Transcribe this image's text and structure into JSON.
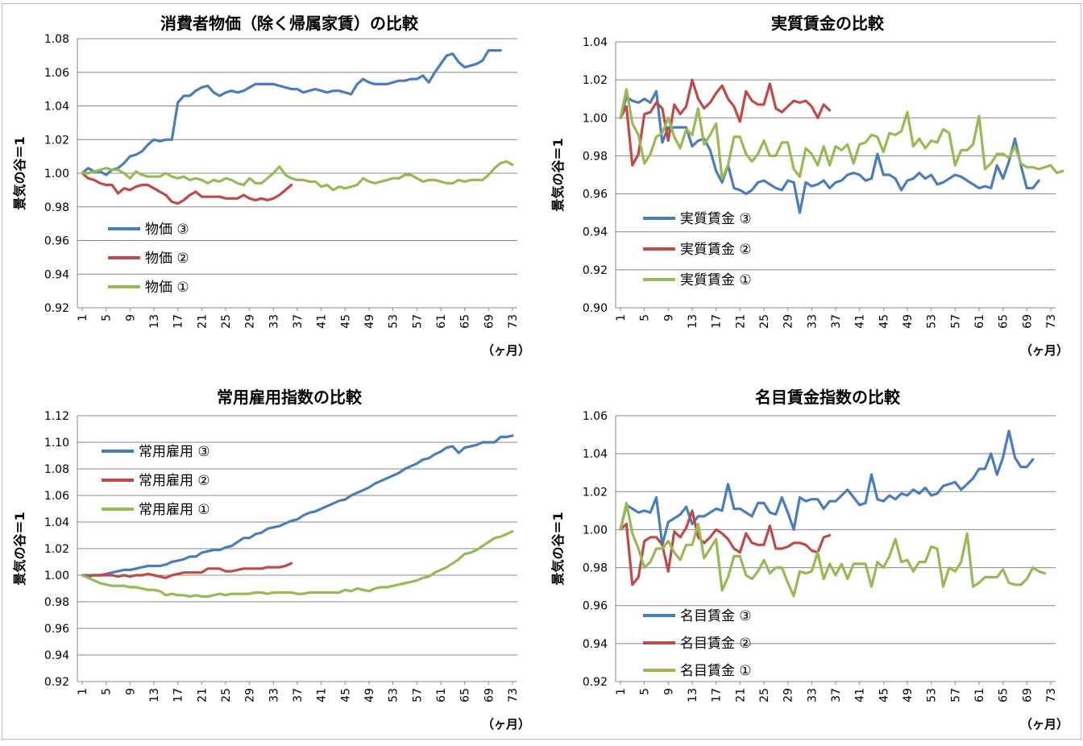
{
  "colors": {
    "series3": "#4a7ebb",
    "series2": "#be4b48",
    "series1": "#98b954",
    "grid": "#888888",
    "axis": "#888888"
  },
  "chart_data": [
    {
      "type": "line",
      "title": "消費者物価（除く帰属家賃）の比較",
      "ylabel": "景気の谷＝1",
      "xlabel": "（ヶ月）",
      "ylim": [
        0.92,
        1.08
      ],
      "yticks": [
        "0.92",
        "0.94",
        "0.96",
        "0.98",
        "1.00",
        "1.02",
        "1.04",
        "1.06",
        "1.08"
      ],
      "xticks": [
        "1",
        "5",
        "9",
        "13",
        "17",
        "21",
        "25",
        "29",
        "33",
        "37",
        "41",
        "45",
        "49",
        "53",
        "57",
        "61",
        "65",
        "69",
        "73"
      ],
      "xlim": [
        1,
        73
      ],
      "legend_position": "left-lower",
      "grid": true,
      "series": [
        {
          "name": "物価 ③",
          "color": "#4a7ebb",
          "x_start": 1,
          "values": [
            1.0,
            1.003,
            1.001,
            1.001,
            0.999,
            1.002,
            1.003,
            1.006,
            1.01,
            1.011,
            1.013,
            1.017,
            1.02,
            1.019,
            1.02,
            1.02,
            1.042,
            1.046,
            1.046,
            1.049,
            1.051,
            1.052,
            1.048,
            1.046,
            1.048,
            1.049,
            1.048,
            1.049,
            1.051,
            1.053,
            1.053,
            1.053,
            1.053,
            1.052,
            1.051,
            1.05,
            1.05,
            1.048,
            1.049,
            1.05,
            1.049,
            1.048,
            1.049,
            1.049,
            1.048,
            1.047,
            1.053,
            1.056,
            1.054,
            1.053,
            1.053,
            1.053,
            1.054,
            1.055,
            1.055,
            1.056,
            1.056,
            1.058,
            1.054,
            1.06,
            1.065,
            1.07,
            1.071,
            1.066,
            1.063,
            1.064,
            1.065,
            1.067,
            1.073,
            1.073,
            1.073
          ]
        },
        {
          "name": "物価 ②",
          "color": "#be4b48",
          "x_start": 1,
          "values": [
            1.0,
            0.997,
            0.996,
            0.994,
            0.993,
            0.993,
            0.988,
            0.991,
            0.99,
            0.992,
            0.993,
            0.993,
            0.991,
            0.989,
            0.987,
            0.983,
            0.982,
            0.984,
            0.987,
            0.989,
            0.986,
            0.986,
            0.986,
            0.986,
            0.985,
            0.985,
            0.985,
            0.987,
            0.985,
            0.984,
            0.985,
            0.984,
            0.985,
            0.987,
            0.99,
            0.993
          ]
        },
        {
          "name": "物価 ①",
          "color": "#98b954",
          "x_start": 1,
          "values": [
            1.0,
            1.0,
            1.001,
            1.002,
            1.003,
            1.002,
            1.002,
            1.0,
            0.997,
            1.001,
            0.999,
            0.998,
            0.998,
            0.998,
            1.0,
            0.998,
            0.997,
            0.998,
            0.996,
            0.997,
            0.996,
            0.994,
            0.996,
            0.995,
            0.997,
            0.996,
            0.994,
            0.993,
            0.997,
            0.994,
            0.994,
            0.997,
            1.0,
            1.004,
            0.999,
            0.997,
            0.996,
            0.996,
            0.995,
            0.995,
            0.992,
            0.993,
            0.99,
            0.992,
            0.991,
            0.992,
            0.993,
            0.997,
            0.995,
            0.994,
            0.995,
            0.996,
            0.997,
            0.997,
            0.999,
            0.999,
            0.997,
            0.995,
            0.996,
            0.996,
            0.995,
            0.994,
            0.994,
            0.996,
            0.995,
            0.996,
            0.996,
            0.996,
            0.999,
            1.003,
            1.006,
            1.007,
            1.005
          ]
        }
      ]
    },
    {
      "type": "line",
      "title": "実質賃金の比較",
      "ylabel": "景気の谷＝1",
      "xlabel": "（ヶ月）",
      "ylim": [
        0.9,
        1.04
      ],
      "yticks": [
        "0.90",
        "0.92",
        "0.94",
        "0.96",
        "0.98",
        "1.00",
        "1.02",
        "1.04"
      ],
      "xticks": [
        "1",
        "5",
        "9",
        "13",
        "17",
        "21",
        "25",
        "29",
        "33",
        "37",
        "41",
        "45",
        "49",
        "53",
        "57",
        "61",
        "65",
        "69",
        "73"
      ],
      "xlim": [
        1,
        73
      ],
      "legend_position": "left-lower",
      "grid": true,
      "series": [
        {
          "name": "実質賃金 ③",
          "color": "#4a7ebb",
          "x_start": 1,
          "values": [
            1.0,
            1.011,
            1.009,
            1.008,
            1.01,
            1.008,
            1.014,
            0.987,
            0.995,
            0.995,
            0.995,
            0.995,
            0.985,
            0.988,
            0.989,
            0.983,
            0.972,
            0.966,
            0.975,
            0.963,
            0.962,
            0.96,
            0.962,
            0.966,
            0.967,
            0.965,
            0.963,
            0.962,
            0.967,
            0.966,
            0.95,
            0.966,
            0.964,
            0.965,
            0.967,
            0.963,
            0.966,
            0.967,
            0.97,
            0.971,
            0.97,
            0.967,
            0.968,
            0.981,
            0.97,
            0.97,
            0.968,
            0.962,
            0.967,
            0.968,
            0.971,
            0.968,
            0.97,
            0.965,
            0.966,
            0.968,
            0.97,
            0.969,
            0.967,
            0.965,
            0.963,
            0.964,
            0.963,
            0.975,
            0.968,
            0.977,
            0.989,
            0.975,
            0.963,
            0.963,
            0.967
          ]
        },
        {
          "name": "実質賃金 ②",
          "color": "#be4b48",
          "x_start": 1,
          "values": [
            1.0,
            1.006,
            0.975,
            0.981,
            1.002,
            1.003,
            1.008,
            1.005,
            0.988,
            1.007,
            1.002,
            1.006,
            1.02,
            1.01,
            1.005,
            1.008,
            1.013,
            1.017,
            1.01,
            1.006,
            0.998,
            1.014,
            1.009,
            1.007,
            1.007,
            1.018,
            1.005,
            1.003,
            1.006,
            1.009,
            1.008,
            1.009,
            1.006,
            1.0,
            1.007,
            1.004
          ]
        },
        {
          "name": "実質賃金 ①",
          "color": "#98b954",
          "x_start": 1,
          "values": [
            1.0,
            1.015,
            0.997,
            0.991,
            0.976,
            0.981,
            0.99,
            0.992,
            1.0,
            0.99,
            0.984,
            0.994,
            0.991,
            1.005,
            0.986,
            0.991,
            0.997,
            0.968,
            0.975,
            0.99,
            0.99,
            0.981,
            0.977,
            0.981,
            0.988,
            0.98,
            0.98,
            0.987,
            0.987,
            0.973,
            0.969,
            0.984,
            0.981,
            0.975,
            0.985,
            0.975,
            0.985,
            0.983,
            0.986,
            0.976,
            0.986,
            0.987,
            0.991,
            0.99,
            0.982,
            0.992,
            0.991,
            0.993,
            1.003,
            0.985,
            0.989,
            0.984,
            0.988,
            0.987,
            0.994,
            0.992,
            0.975,
            0.983,
            0.983,
            0.986,
            1.001,
            0.973,
            0.976,
            0.981,
            0.981,
            0.979,
            0.985,
            0.976,
            0.974,
            0.974,
            0.973,
            0.974,
            0.975,
            0.971,
            0.972
          ]
        }
      ]
    },
    {
      "type": "line",
      "title": "常用雇用指数の比較",
      "ylabel": "景気の谷＝1",
      "xlabel": "（ヶ月）",
      "ylim": [
        0.92,
        1.12
      ],
      "yticks": [
        "0.92",
        "0.94",
        "0.96",
        "0.98",
        "1.00",
        "1.02",
        "1.04",
        "1.06",
        "1.08",
        "1.10",
        "1.12"
      ],
      "xticks": [
        "1",
        "5",
        "9",
        "13",
        "17",
        "21",
        "25",
        "29",
        "33",
        "37",
        "41",
        "45",
        "49",
        "53",
        "57",
        "61",
        "65",
        "69",
        "73"
      ],
      "xlim": [
        1,
        73
      ],
      "legend_position": "top-left",
      "grid": true,
      "series": [
        {
          "name": "常用雇用 ③",
          "color": "#4a7ebb",
          "x_start": 1,
          "values": [
            1.0,
            1.0,
            1.0,
            1.0,
            1.001,
            1.002,
            1.003,
            1.004,
            1.004,
            1.005,
            1.006,
            1.007,
            1.007,
            1.007,
            1.008,
            1.01,
            1.011,
            1.012,
            1.014,
            1.014,
            1.017,
            1.018,
            1.019,
            1.019,
            1.021,
            1.022,
            1.025,
            1.028,
            1.028,
            1.031,
            1.032,
            1.035,
            1.036,
            1.037,
            1.039,
            1.041,
            1.042,
            1.045,
            1.047,
            1.048,
            1.05,
            1.052,
            1.054,
            1.056,
            1.057,
            1.06,
            1.062,
            1.064,
            1.066,
            1.069,
            1.071,
            1.073,
            1.075,
            1.077,
            1.08,
            1.082,
            1.084,
            1.087,
            1.088,
            1.091,
            1.093,
            1.096,
            1.097,
            1.092,
            1.096,
            1.097,
            1.098,
            1.1,
            1.1,
            1.1,
            1.104,
            1.104,
            1.105
          ]
        },
        {
          "name": "常用雇用 ②",
          "color": "#be4b48",
          "x_start": 1,
          "values": [
            1.0,
            0.999,
            1.0,
            1.0,
            1.0,
            1.0,
            0.999,
            1.0,
            0.999,
            1.0,
            1.0,
            1.001,
            1.0,
            0.999,
            0.998,
            1.0,
            1.001,
            1.002,
            1.002,
            1.002,
            1.002,
            1.005,
            1.005,
            1.005,
            1.003,
            1.003,
            1.004,
            1.005,
            1.005,
            1.005,
            1.005,
            1.006,
            1.006,
            1.006,
            1.007,
            1.009
          ]
        },
        {
          "name": "常用雇用 ①",
          "color": "#98b954",
          "x_start": 1,
          "values": [
            1.0,
            0.998,
            0.996,
            0.994,
            0.993,
            0.992,
            0.992,
            0.992,
            0.991,
            0.991,
            0.99,
            0.989,
            0.989,
            0.988,
            0.985,
            0.986,
            0.985,
            0.985,
            0.984,
            0.985,
            0.984,
            0.984,
            0.985,
            0.986,
            0.985,
            0.986,
            0.986,
            0.986,
            0.986,
            0.987,
            0.987,
            0.986,
            0.987,
            0.987,
            0.987,
            0.987,
            0.986,
            0.986,
            0.987,
            0.987,
            0.987,
            0.987,
            0.987,
            0.987,
            0.989,
            0.988,
            0.99,
            0.989,
            0.988,
            0.99,
            0.991,
            0.991,
            0.992,
            0.993,
            0.994,
            0.995,
            0.996,
            0.998,
            0.999,
            1.002,
            1.004,
            1.006,
            1.009,
            1.012,
            1.016,
            1.017,
            1.019,
            1.022,
            1.025,
            1.028,
            1.029,
            1.031,
            1.033
          ]
        }
      ]
    },
    {
      "type": "line",
      "title": "名目賃金指数の比較",
      "ylabel": "景気の谷＝1",
      "xlabel": "（ヶ月）",
      "ylim": [
        0.92,
        1.06
      ],
      "yticks": [
        "0.92",
        "0.94",
        "0.96",
        "0.98",
        "1.00",
        "1.02",
        "1.04",
        "1.06"
      ],
      "xticks": [
        "1",
        "5",
        "9",
        "13",
        "17",
        "21",
        "25",
        "29",
        "33",
        "37",
        "41",
        "45",
        "49",
        "53",
        "57",
        "61",
        "65",
        "69",
        "73"
      ],
      "xlim": [
        1,
        73
      ],
      "legend_position": "left-lower",
      "grid": true,
      "series": [
        {
          "name": "名目賃金 ③",
          "color": "#4a7ebb",
          "x_start": 1,
          "values": [
            1.0,
            1.013,
            1.011,
            1.009,
            1.01,
            1.009,
            1.017,
            0.992,
            1.004,
            1.006,
            1.008,
            1.012,
            1.003,
            1.007,
            1.007,
            1.009,
            1.011,
            1.01,
            1.024,
            1.011,
            1.011,
            1.009,
            1.007,
            1.014,
            1.014,
            1.009,
            1.008,
            1.017,
            1.009,
            1.0,
            1.017,
            1.015,
            1.016,
            1.016,
            1.011,
            1.015,
            1.015,
            1.018,
            1.021,
            1.017,
            1.013,
            1.014,
            1.029,
            1.016,
            1.015,
            1.018,
            1.016,
            1.019,
            1.018,
            1.021,
            1.019,
            1.022,
            1.018,
            1.019,
            1.023,
            1.024,
            1.025,
            1.021,
            1.024,
            1.027,
            1.032,
            1.032,
            1.04,
            1.029,
            1.038,
            1.052,
            1.038,
            1.033,
            1.033,
            1.037
          ]
        },
        {
          "name": "名目賃金 ②",
          "color": "#be4b48",
          "x_start": 1,
          "values": [
            1.0,
            1.003,
            0.971,
            0.975,
            0.994,
            0.996,
            0.996,
            0.992,
            0.978,
            0.999,
            0.996,
            1.001,
            1.01,
            0.996,
            0.993,
            0.996,
            1.0,
            0.998,
            0.995,
            0.99,
            0.988,
            0.998,
            0.993,
            0.992,
            0.992,
            1.002,
            0.99,
            0.99,
            0.991,
            0.993,
            0.993,
            0.992,
            0.989,
            0.988,
            0.996,
            0.997
          ]
        },
        {
          "name": "名目賃金 ①",
          "color": "#98b954",
          "x_start": 1,
          "values": [
            1.0,
            1.014,
            0.998,
            0.99,
            0.98,
            0.983,
            0.99,
            0.99,
            0.994,
            0.988,
            0.984,
            0.992,
            0.992,
            1.003,
            0.985,
            0.99,
            0.995,
            0.968,
            0.975,
            0.986,
            0.986,
            0.976,
            0.974,
            0.978,
            0.984,
            0.977,
            0.98,
            0.98,
            0.972,
            0.965,
            0.978,
            0.977,
            0.978,
            0.988,
            0.974,
            0.982,
            0.976,
            0.982,
            0.974,
            0.982,
            0.982,
            0.982,
            0.97,
            0.983,
            0.98,
            0.986,
            0.995,
            0.983,
            0.984,
            0.978,
            0.983,
            0.983,
            0.991,
            0.99,
            0.97,
            0.98,
            0.978,
            0.983,
            0.998,
            0.97,
            0.972,
            0.975,
            0.975,
            0.975,
            0.979,
            0.972,
            0.971,
            0.971,
            0.974,
            0.98,
            0.978,
            0.977
          ]
        }
      ]
    }
  ]
}
